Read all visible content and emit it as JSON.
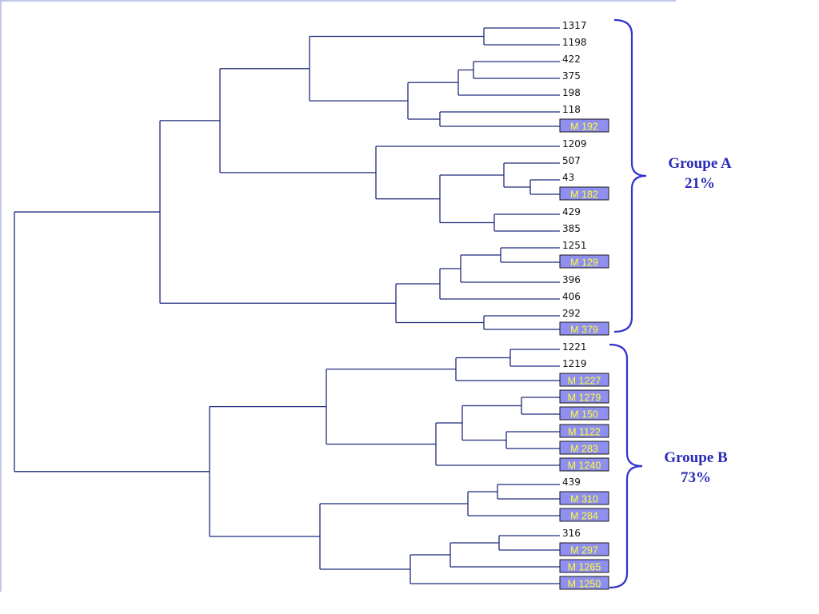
{
  "colors": {
    "tree_line": "#1f2a7a",
    "label_box_fill": "#8f8ff0",
    "label_box_text": "#ffff33",
    "brace": "#3333cc",
    "group_text": "#2a2ab8"
  },
  "leaves": [
    {
      "label": "1317",
      "highlighted": false
    },
    {
      "label": "1198",
      "highlighted": false
    },
    {
      "label": "422",
      "highlighted": false
    },
    {
      "label": "375",
      "highlighted": false
    },
    {
      "label": "198",
      "highlighted": false
    },
    {
      "label": "118",
      "highlighted": false
    },
    {
      "label": "M 192",
      "highlighted": true
    },
    {
      "label": "1209",
      "highlighted": false
    },
    {
      "label": "507",
      "highlighted": false
    },
    {
      "label": "43",
      "highlighted": false
    },
    {
      "label": "M 182",
      "highlighted": true
    },
    {
      "label": "429",
      "highlighted": false
    },
    {
      "label": "385",
      "highlighted": false
    },
    {
      "label": "1251",
      "highlighted": false
    },
    {
      "label": "M 129",
      "highlighted": true
    },
    {
      "label": "396",
      "highlighted": false
    },
    {
      "label": "406",
      "highlighted": false
    },
    {
      "label": "292",
      "highlighted": false
    },
    {
      "label": "M 379",
      "highlighted": true
    },
    {
      "label": "1221",
      "highlighted": false
    },
    {
      "label": "1219",
      "highlighted": false
    },
    {
      "label": "M 1227",
      "highlighted": true
    },
    {
      "label": "M 1279",
      "highlighted": true
    },
    {
      "label": "M 150",
      "highlighted": true
    },
    {
      "label": "M 1122",
      "highlighted": true
    },
    {
      "label": "M 283",
      "highlighted": true
    },
    {
      "label": "M 1240",
      "highlighted": true
    },
    {
      "label": "439",
      "highlighted": false
    },
    {
      "label": "M 310",
      "highlighted": true
    },
    {
      "label": "M 284",
      "highlighted": true
    },
    {
      "label": "316",
      "highlighted": false
    },
    {
      "label": "M 297",
      "highlighted": true
    },
    {
      "label": "M 1265",
      "highlighted": true
    },
    {
      "label": "M 1250",
      "highlighted": true
    }
  ],
  "groups": [
    {
      "name": "Groupe A",
      "percent": "21%"
    },
    {
      "name": "Groupe B",
      "percent": "73%"
    }
  ]
}
